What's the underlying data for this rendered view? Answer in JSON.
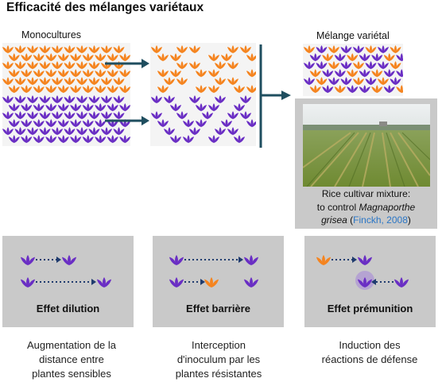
{
  "title": "Efficacité des mélanges variétaux",
  "monocultures_label": "Monocultures",
  "melange_label": "Mélange variétal",
  "photo_caption": {
    "line1": "Rice cultivar mixture:",
    "line2_prefix": "to control ",
    "line2_italic": "Magnaporthe",
    "line3_italic": "grisea",
    "line3_open": " (",
    "citation": "Finckh, 2008",
    "line3_close": ")"
  },
  "mechanisms": [
    {
      "label": "Effet dilution",
      "description": [
        "Augmentation de la",
        "distance entre",
        "plantes sensibles"
      ]
    },
    {
      "label": "Effet barrière",
      "description": [
        "Interception",
        "d'inoculum par les",
        "plantes résistantes"
      ]
    },
    {
      "label": "Effet prémunition",
      "description": [
        "Induction des",
        "réactions de défense"
      ]
    }
  ],
  "colors": {
    "orange": "#f5841f",
    "purple": "#6a2ec4",
    "arrow": "#1f4e5f",
    "dotted": "#1f3b6e",
    "panel": "#c9c9c9"
  },
  "icons": [
    "plant-icon",
    "arrow-icon"
  ]
}
